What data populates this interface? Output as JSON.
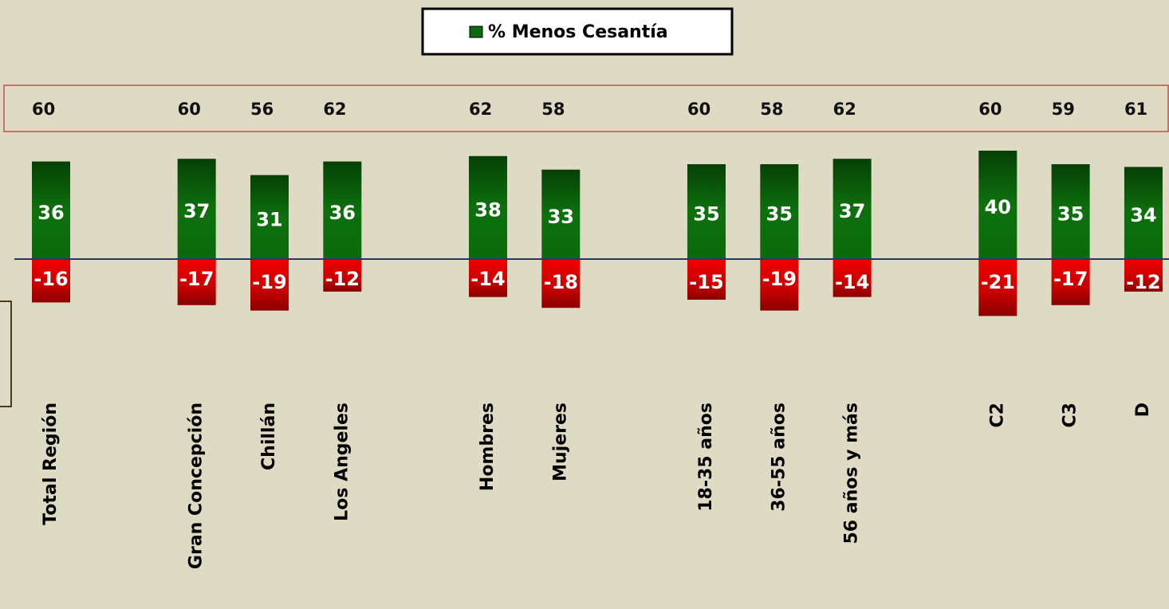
{
  "chart_data": {
    "type": "diverging-bar",
    "categories": [
      "Total Región",
      null,
      "Gran Concepción",
      "Chillán",
      "Los Angeles",
      null,
      "Hombres",
      "Mujeres",
      null,
      "18-35 años",
      "36-55 años",
      "56 años y más",
      null,
      "C2",
      "C3",
      "D"
    ],
    "series": [
      {
        "name": "% Menos Cesantía",
        "color": "#0b6a0b",
        "values": [
          36,
          null,
          37,
          31,
          36,
          null,
          38,
          33,
          null,
          35,
          35,
          37,
          null,
          40,
          35,
          34
        ]
      },
      {
        "color": "#d40000",
        "values": [
          -16,
          null,
          -17,
          -19,
          -12,
          null,
          -14,
          -18,
          null,
          -15,
          -19,
          -14,
          null,
          -21,
          -17,
          -12
        ]
      }
    ],
    "totals": [
      60,
      null,
      60,
      56,
      62,
      null,
      62,
      58,
      null,
      60,
      58,
      62,
      null,
      60,
      59,
      61
    ],
    "ylim": [
      -40,
      40
    ]
  }
}
